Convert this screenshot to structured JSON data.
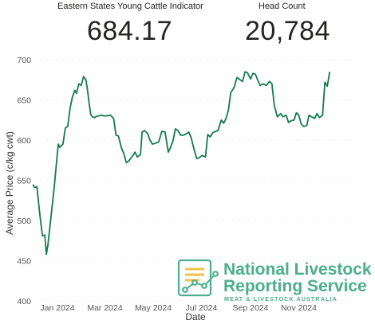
{
  "kpis": {
    "indicator": {
      "label": "Eastern States Young Cattle Indicator",
      "value": "684.17"
    },
    "head_count": {
      "label": "Head Count",
      "value": "20,784"
    }
  },
  "logo": {
    "line1": "National Livestock",
    "line2": "Reporting Service",
    "tagline": "MEAT & LIVESTOCK AUSTRALIA",
    "color": "#4cae8c"
  },
  "chart_data": {
    "type": "line",
    "xlabel": "Date",
    "ylabel": "Average Price (c/kg cwt)",
    "ylim": [
      400,
      700
    ],
    "yticks": [
      400,
      450,
      500,
      550,
      600,
      650,
      700
    ],
    "x_ticks": [
      {
        "date": "2024-01-01",
        "label": "Jan 2024"
      },
      {
        "date": "2024-03-01",
        "label": "Mar 2024"
      },
      {
        "date": "2024-05-01",
        "label": "May 2024"
      },
      {
        "date": "2024-07-01",
        "label": "Jul 2024"
      },
      {
        "date": "2024-09-01",
        "label": "Sep 2024"
      },
      {
        "date": "2024-11-01",
        "label": "Nov 2024"
      }
    ],
    "grid": "horizontal",
    "line_color": "#137a4e",
    "series": [
      {
        "x": [
          "2023-12-01",
          "2023-12-03",
          "2023-12-06",
          "2023-12-10",
          "2023-12-13",
          "2023-12-16",
          "2023-12-18",
          "2023-12-20",
          "2023-12-28",
          "2024-01-02",
          "2024-01-04",
          "2024-01-08",
          "2024-01-11",
          "2024-01-14",
          "2024-01-17",
          "2024-01-20",
          "2024-01-23",
          "2024-01-25",
          "2024-01-28",
          "2024-01-31",
          "2024-02-03",
          "2024-02-06",
          "2024-02-08",
          "2024-02-10",
          "2024-02-12",
          "2024-02-14",
          "2024-02-17",
          "2024-02-20",
          "2024-02-22",
          "2024-02-25",
          "2024-03-01",
          "2024-03-08",
          "2024-03-12",
          "2024-03-15",
          "2024-03-18",
          "2024-03-22",
          "2024-03-25",
          "2024-03-28",
          "2024-03-31",
          "2024-04-04",
          "2024-04-08",
          "2024-04-11",
          "2024-04-15",
          "2024-04-17",
          "2024-04-20",
          "2024-04-24",
          "2024-04-27",
          "2024-04-30",
          "2024-05-04",
          "2024-05-08",
          "2024-05-12",
          "2024-05-16",
          "2024-05-20",
          "2024-05-23",
          "2024-05-26",
          "2024-05-29",
          "2024-06-01",
          "2024-06-05",
          "2024-06-08",
          "2024-06-12",
          "2024-06-15",
          "2024-06-18",
          "2024-06-22",
          "2024-06-25",
          "2024-06-28",
          "2024-07-02",
          "2024-07-06",
          "2024-07-09",
          "2024-07-12",
          "2024-07-15",
          "2024-07-19",
          "2024-07-22",
          "2024-07-26",
          "2024-07-29",
          "2024-08-01",
          "2024-08-04",
          "2024-08-07",
          "2024-08-11",
          "2024-08-15",
          "2024-08-19",
          "2024-08-22",
          "2024-08-25",
          "2024-08-28",
          "2024-09-01",
          "2024-09-04",
          "2024-09-07",
          "2024-09-10",
          "2024-09-13",
          "2024-09-17",
          "2024-09-21",
          "2024-09-25",
          "2024-09-28",
          "2024-10-01",
          "2024-10-05",
          "2024-10-09",
          "2024-10-12",
          "2024-10-16",
          "2024-10-19",
          "2024-10-22",
          "2024-10-26",
          "2024-10-29",
          "2024-11-01",
          "2024-11-04",
          "2024-11-07",
          "2024-11-11",
          "2024-11-14",
          "2024-11-17",
          "2024-11-21",
          "2024-11-24",
          "2024-11-27",
          "2024-12-01",
          "2024-12-04",
          "2024-12-07",
          "2024-12-10"
        ],
        "y": [
          545,
          541,
          542,
          505,
          481,
          482,
          458,
          470,
          542,
          595,
          591,
          595,
          615,
          617,
          640,
          654,
          662,
          658,
          670,
          668,
          679,
          675,
          662,
          646,
          632,
          629,
          628,
          630,
          630,
          631,
          630,
          631,
          627,
          606,
          605,
          590,
          583,
          572,
          574,
          579,
          585,
          579,
          582,
          610,
          612,
          608,
          600,
          595,
          596,
          598,
          611,
          610,
          585,
          591,
          599,
          614,
          612,
          606,
          606,
          608,
          610,
          603,
          587,
          577,
          578,
          581,
          579,
          607,
          604,
          609,
          611,
          612,
          625,
          621,
          627,
          637,
          659,
          665,
          678,
          675,
          673,
          685,
          684,
          676,
          683,
          682,
          675,
          668,
          670,
          668,
          673,
          670,
          643,
          629,
          633,
          629,
          631,
          622,
          624,
          625,
          634,
          631,
          620,
          617,
          618,
          631,
          629,
          627,
          633,
          628,
          631,
          672,
          667,
          685
        ]
      }
    ]
  }
}
